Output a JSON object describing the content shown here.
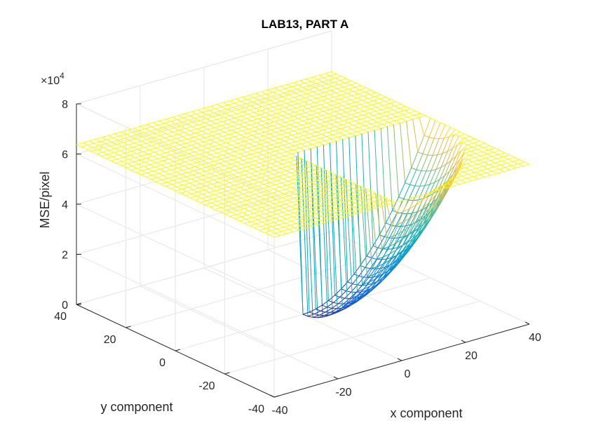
{
  "chart_data": {
    "type": "surface",
    "title": "LAB13, PART A",
    "xlabel": "x component",
    "ylabel": "y component",
    "zlabel": "MSE/pixel",
    "z_exponent_label": "×10",
    "z_exponent": "4",
    "xlim": [
      -40,
      40
    ],
    "ylim": [
      -40,
      40
    ],
    "zlim": [
      0,
      80000
    ],
    "x_ticks": [
      "-40",
      "-20",
      "0",
      "20",
      "40"
    ],
    "x_tick_values": [
      -40,
      -20,
      0,
      20,
      40
    ],
    "y_ticks": [
      "-40",
      "-20",
      "0",
      "20",
      "40"
    ],
    "y_tick_values": [
      -40,
      -20,
      0,
      20,
      40
    ],
    "z_ticks": [
      "0",
      "2",
      "4",
      "6",
      "8"
    ],
    "z_tick_values": [
      0,
      20000,
      40000,
      60000,
      80000
    ],
    "grid": true,
    "colormap": "parula",
    "surface": {
      "x_range": [
        -40,
        40
      ],
      "y_range": [
        -40,
        40
      ],
      "x_grid_points": 41,
      "y_grid_points": 41,
      "saturation_value": 63750,
      "minimum_value": 0,
      "minimum_at": [
        0,
        0
      ],
      "valley_region": {
        "x": [
          0,
          40
        ],
        "y": [
          -40,
          0
        ]
      },
      "peak_of_valley_corners": 63750
    }
  }
}
